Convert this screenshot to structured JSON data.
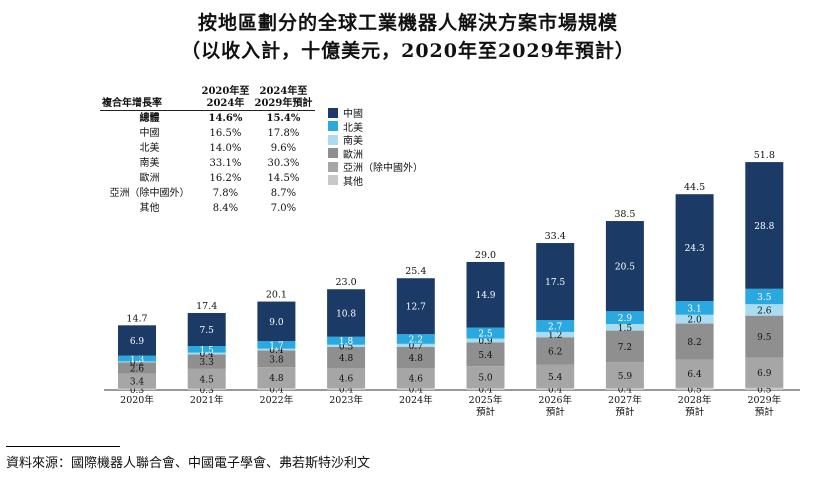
{
  "title_line1": "按地區劃分的全球工業機器人解決方案市場規模",
  "title_line2": "（以收入計，十億美元，2020年至2029年預計）",
  "source": "資料來源：國際機器人聯合會、中國電子學會、弗若斯特沙利文",
  "growth_table": {
    "header_label": "複合年增長率",
    "col1": "2020年至\n2024年",
    "col2": "2024年至\n2029年預計",
    "rows": [
      {
        "label": "總體",
        "a": "14.6%",
        "b": "15.4%",
        "total": true
      },
      {
        "label": "中國",
        "a": "16.5%",
        "b": "17.8%"
      },
      {
        "label": "北美",
        "a": "14.0%",
        "b": "9.6%"
      },
      {
        "label": "南美",
        "a": "33.1%",
        "b": "30.3%"
      },
      {
        "label": "歐洲",
        "a": "16.2%",
        "b": "14.5%"
      },
      {
        "label": "亞洲（除中國外）",
        "a": "7.8%",
        "b": "8.7%"
      },
      {
        "label": "其他",
        "a": "8.4%",
        "b": "7.0%"
      }
    ]
  },
  "chart_data": {
    "type": "bar",
    "stacked": true,
    "categories": [
      "2020年",
      "2021年",
      "2022年",
      "2023年",
      "2024年",
      "2025年\n預計",
      "2026年\n預計",
      "2027年\n預計",
      "2028年\n預計",
      "2029年\n預計"
    ],
    "totals": [
      14.7,
      17.4,
      20.1,
      23.0,
      25.4,
      29.0,
      33.4,
      38.5,
      44.5,
      51.8
    ],
    "series": [
      {
        "name": "其他",
        "color": "#c8c8c8",
        "values": [
          0.3,
          0.3,
          0.4,
          0.4,
          0.4,
          0.4,
          0.4,
          0.4,
          0.5,
          0.5
        ]
      },
      {
        "name": "亞洲（除中國外）",
        "color": "#a6a6a6",
        "values": [
          3.4,
          4.5,
          4.8,
          4.6,
          4.6,
          5.0,
          5.4,
          5.9,
          6.4,
          6.9
        ]
      },
      {
        "name": "歐洲",
        "color": "#8f8f8f",
        "values": [
          2.6,
          3.3,
          3.8,
          4.8,
          4.8,
          5.4,
          6.2,
          7.2,
          8.2,
          9.5
        ]
      },
      {
        "name": "南美",
        "color": "#a9dcef",
        "values": [
          0.2,
          0.4,
          0.4,
          0.5,
          0.7,
          0.9,
          1.2,
          1.5,
          2.0,
          2.6
        ]
      },
      {
        "name": "北美",
        "color": "#2aa8e0",
        "values": [
          1.3,
          1.5,
          1.7,
          1.8,
          2.2,
          2.5,
          2.7,
          2.9,
          3.1,
          3.5
        ]
      },
      {
        "name": "中國",
        "color": "#1c3a66",
        "values": [
          6.9,
          7.5,
          9.0,
          10.8,
          12.7,
          14.9,
          17.5,
          20.5,
          24.3,
          28.8
        ]
      }
    ],
    "legend_order": [
      "中國",
      "北美",
      "南美",
      "歐洲",
      "亞洲（除中國外）",
      "其他"
    ]
  }
}
